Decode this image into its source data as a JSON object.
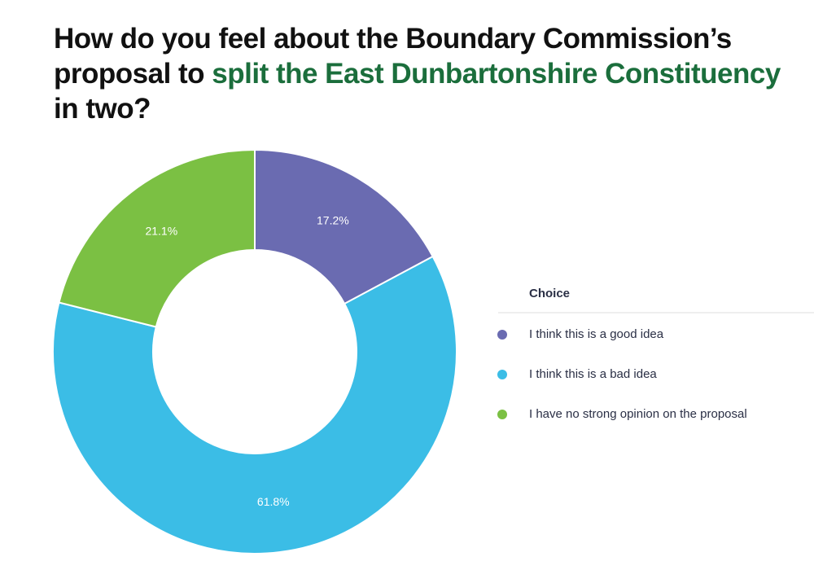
{
  "chart_data": {
    "type": "donut",
    "title": [
      "How do you feel about the Boundary Commission’s proposal to ",
      "split the East Dunbartonshire Constituency",
      " in two?"
    ],
    "legend_title": "Choice",
    "categories": [
      "I think this is a good idea",
      "I think this is a bad idea",
      "I have no strong opinion on the proposal"
    ],
    "values": [
      17.2,
      61.8,
      21.1
    ],
    "value_labels": [
      "17.2%",
      "61.8%",
      "21.1%"
    ],
    "colors": [
      "#6a6bb1",
      "#3bbde6",
      "#7bc043"
    ],
    "legend": "right"
  }
}
